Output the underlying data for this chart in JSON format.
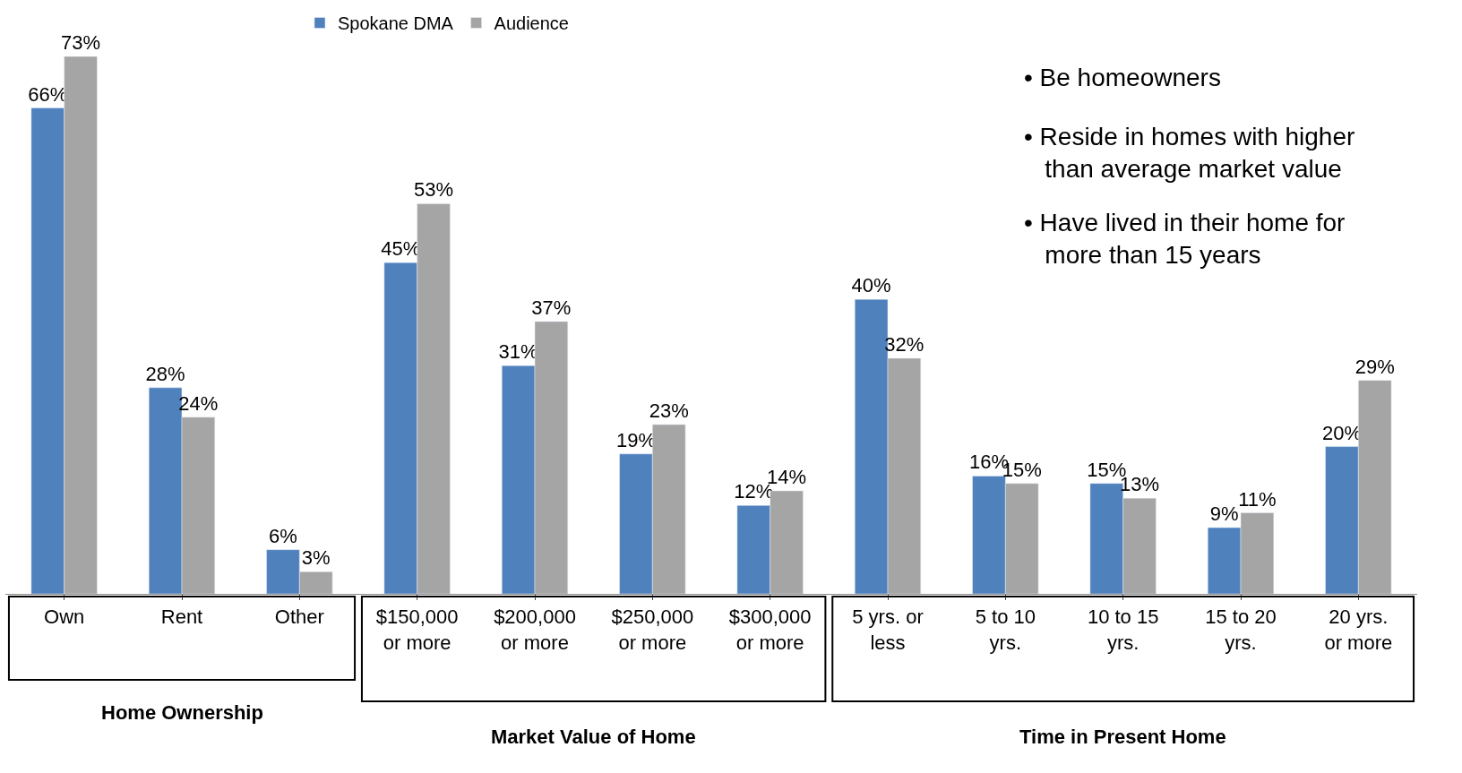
{
  "chart_data": {
    "type": "bar",
    "categories": [
      "Own",
      "Rent",
      "Other",
      "$150,000 or more",
      "$200,000 or more",
      "$250,000 or more",
      "$300,000 or more",
      "5 yrs. or less",
      "5 to 10 yrs.",
      "10 to 15 yrs.",
      "15 to 20 yrs.",
      "20 yrs. or more"
    ],
    "series": [
      {
        "name": "Spokane DMA",
        "color": "#4f81bd",
        "values": [
          66,
          28,
          6,
          45,
          31,
          19,
          12,
          40,
          16,
          15,
          9,
          20
        ],
        "value_labels": [
          "66%",
          "28%",
          "6%",
          "45%",
          "31%",
          "19%",
          "12%",
          "40%",
          "16%",
          "15%",
          "9%",
          "20%"
        ]
      },
      {
        "name": "Audience",
        "color": "#a5a5a5",
        "values": [
          73,
          24,
          3,
          53,
          37,
          23,
          14,
          32,
          15,
          13,
          11,
          29
        ],
        "value_labels": [
          "73%",
          "24%",
          "3%",
          "53%",
          "37%",
          "23%",
          "14%",
          "32%",
          "15%",
          "13%",
          "11%",
          "29%"
        ]
      }
    ],
    "legend": "top",
    "annotations": [
      "Home Ownership",
      "Market Value of Home",
      "Time in Present Home",
      "• Be homeowners",
      "• Reside in homes with higher than average market value",
      "• Have lived in their home for more than 15 years"
    ]
  }
}
